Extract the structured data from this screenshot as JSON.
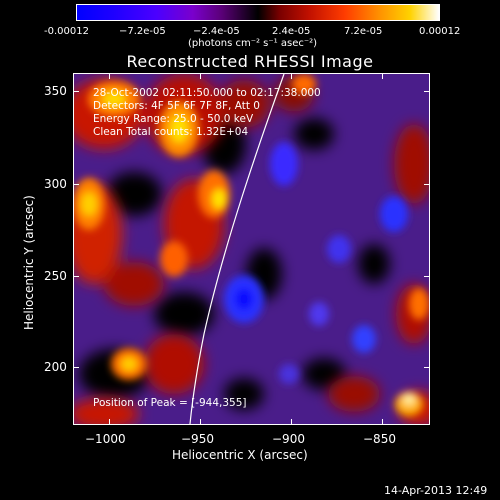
{
  "colorbar": {
    "tick_labels": [
      "-0.00012",
      "−7.2e-05",
      "−2.4e-05",
      "2.4e-05",
      "7.2e-05",
      "0.00012"
    ],
    "units_line": "(photons cm⁻² s⁻¹ asec⁻²)"
  },
  "plot": {
    "title": "Reconstructed RHESSI Image",
    "info_lines": [
      "28-Oct-2002 02:11:50.000 to 02:17:38.000",
      "Detectors: 4F 5F 6F 7F 8F, Att 0",
      "Energy Range: 25.0 - 50.0 keV",
      "Clean    Total counts: 1.32E+04"
    ],
    "peak_label": "Position of Peak = [-944,355]",
    "x_ticks": [
      "−1000",
      "−950",
      "−900",
      "−850"
    ],
    "y_ticks": [
      "350",
      "300",
      "250",
      "200"
    ],
    "xlabel": "Heliocentric X (arcsec)",
    "ylabel": "Heliocentric Y (arcsec)"
  },
  "footer": {
    "timestamp": "14-Apr-2013 12:49"
  },
  "colors": {
    "background": "#000000",
    "limb_line": "#ffffff"
  }
}
